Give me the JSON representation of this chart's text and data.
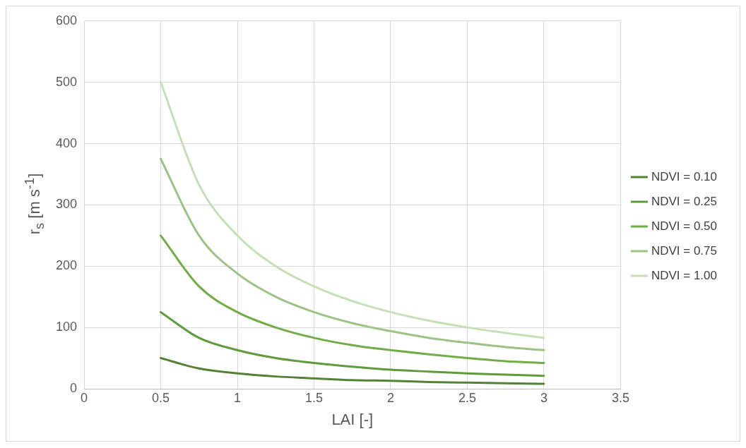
{
  "chart_data": {
    "type": "line",
    "xlabel": "LAI [-]",
    "ylabel": "r$_{s}$ [m s$^{-1}$]",
    "x": [
      0.5,
      0.75,
      1,
      1.25,
      1.5,
      1.75,
      2,
      2.25,
      2.5,
      2.75,
      3
    ],
    "series": [
      {
        "name": "NDVI = 0.10",
        "color": "#548235",
        "values": [
          50,
          33,
          25,
          20,
          17,
          14,
          13,
          11,
          10,
          9,
          8
        ]
      },
      {
        "name": "NDVI = 0.25",
        "color": "#5f9b3b",
        "values": [
          125,
          83,
          63,
          50,
          42,
          36,
          31,
          28,
          25,
          23,
          21
        ]
      },
      {
        "name": "NDVI = 0.50",
        "color": "#70ad47",
        "values": [
          250,
          167,
          125,
          100,
          83,
          71,
          63,
          56,
          50,
          45,
          42
        ]
      },
      {
        "name": "NDVI = 0.75",
        "color": "#9cc384",
        "values": [
          375,
          250,
          188,
          150,
          125,
          107,
          94,
          83,
          75,
          68,
          63
        ]
      },
      {
        "name": "NDVI = 1.00",
        "color": "#c5e0b4",
        "values": [
          500,
          333,
          250,
          200,
          167,
          143,
          125,
          111,
          100,
          91,
          83
        ]
      }
    ],
    "xlim": [
      0,
      3.5
    ],
    "xticks": [
      0,
      0.5,
      1,
      1.5,
      2,
      2.5,
      3,
      3.5
    ],
    "ylim": [
      0,
      600
    ],
    "yticks": [
      0,
      100,
      200,
      300,
      400,
      500,
      600
    ],
    "grid": true,
    "legend": "right",
    "marker": "none",
    "line_style": "solid"
  }
}
